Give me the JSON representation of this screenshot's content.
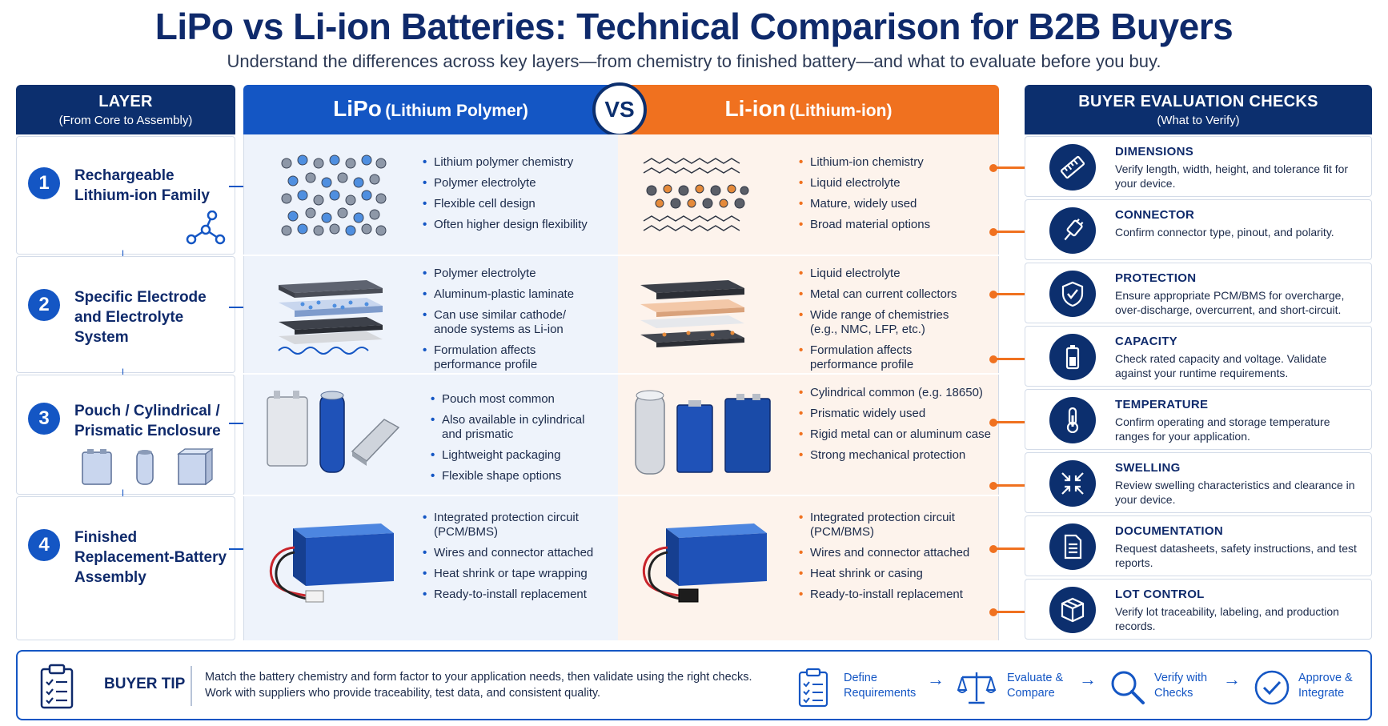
{
  "header": {
    "title": "LiPo vs Li-ion Batteries: Technical Comparison for B2B Buyers",
    "subtitle": "Understand the differences across key layers—from chemistry to finished battery—and what to evaluate before you buy."
  },
  "layer_column": {
    "title": "LAYER",
    "subtitle": "(From Core to Assembly)",
    "layers": [
      {
        "number": "1",
        "label": "Rechargeable Lithium-ion Family"
      },
      {
        "number": "2",
        "label": "Specific Electrode and Electrolyte System"
      },
      {
        "number": "3",
        "label": "Pouch / Cylindrical / Prismatic Enclosure"
      },
      {
        "number": "4",
        "label": "Finished Replacement-Battery Assembly"
      }
    ]
  },
  "lipo": {
    "name": "LiPo",
    "full_name": "(Lithium Polymer)",
    "color": "#1456c4",
    "rows": [
      [
        "Lithium polymer chemistry",
        "Polymer electrolyte",
        "Flexible cell design",
        "Often higher design flexibility"
      ],
      [
        "Polymer electrolyte",
        "Aluminum-plastic laminate",
        "Can use similar cathode/ anode systems as Li-ion",
        "Formulation affects performance profile"
      ],
      [
        "Pouch most common",
        "Also available in cylindrical and prismatic",
        "Lightweight packaging",
        "Flexible shape options"
      ],
      [
        "Integrated protection circuit (PCM/BMS)",
        "Wires and connector attached",
        "Heat shrink or tape wrapping",
        "Ready-to-install replacement"
      ]
    ]
  },
  "vs_label": "VS",
  "liion": {
    "name": "Li-ion",
    "full_name": "(Lithium-ion)",
    "color": "#f0711f",
    "rows": [
      [
        "Lithium-ion chemistry",
        "Liquid electrolyte",
        "Mature, widely used",
        "Broad material options"
      ],
      [
        "Liquid electrolyte",
        "Metal can current collectors",
        "Wide range of chemistries (e.g., NMC, LFP, etc.)",
        "Formulation affects performance profile"
      ],
      [
        "Cylindrical common (e.g. 18650)",
        "Prismatic widely used",
        "Rigid metal can or aluminum case",
        "Strong mechanical protection"
      ],
      [
        "Integrated protection circuit (PCM/BMS)",
        "Wires and connector attached",
        "Heat shrink or casing",
        "Ready-to-install replacement"
      ]
    ]
  },
  "checks": {
    "title": "BUYER EVALUATION CHECKS",
    "subtitle": "(What to Verify)",
    "items": [
      {
        "title": "DIMENSIONS",
        "text": "Verify length, width, height, and tolerance fit for your device.",
        "icon": "ruler-icon"
      },
      {
        "title": "CONNECTOR",
        "text": "Confirm connector type, pinout, and polarity.",
        "icon": "plug-icon"
      },
      {
        "title": "PROTECTION",
        "text": "Ensure appropriate PCM/BMS for overcharge, over-discharge, overcurrent, and short-circuit.",
        "icon": "shield-check-icon"
      },
      {
        "title": "CAPACITY",
        "text": "Check rated capacity and voltage. Validate against your runtime requirements.",
        "icon": "battery-icon"
      },
      {
        "title": "TEMPERATURE",
        "text": "Confirm operating and storage temperature ranges for your application.",
        "icon": "thermometer-icon"
      },
      {
        "title": "SWELLING",
        "text": "Review swelling characteristics and clearance in your device.",
        "icon": "compress-arrows-icon"
      },
      {
        "title": "DOCUMENTATION",
        "text": "Request datasheets, safety instructions, and test reports.",
        "icon": "document-icon"
      },
      {
        "title": "LOT CONTROL",
        "text": "Verify lot traceability, labeling, and production records.",
        "icon": "box-icon"
      }
    ]
  },
  "footer": {
    "tip_label": "BUYER TIP",
    "tip_line1": "Match the battery chemistry and form factor to your application needs, then validate using the right checks.",
    "tip_line2": "Work with suppliers who provide traceability, test data, and consistent quality.",
    "steps": [
      {
        "line1": "Define",
        "line2": "Requirements",
        "icon": "checklist-icon"
      },
      {
        "line1": "Evaluate &",
        "line2": "Compare",
        "icon": "scale-icon"
      },
      {
        "line1": "Verify with",
        "line2": "Checks",
        "icon": "magnifier-icon"
      },
      {
        "line1": "Approve &",
        "line2": "Integrate",
        "icon": "checkmark-circle-icon"
      }
    ]
  }
}
